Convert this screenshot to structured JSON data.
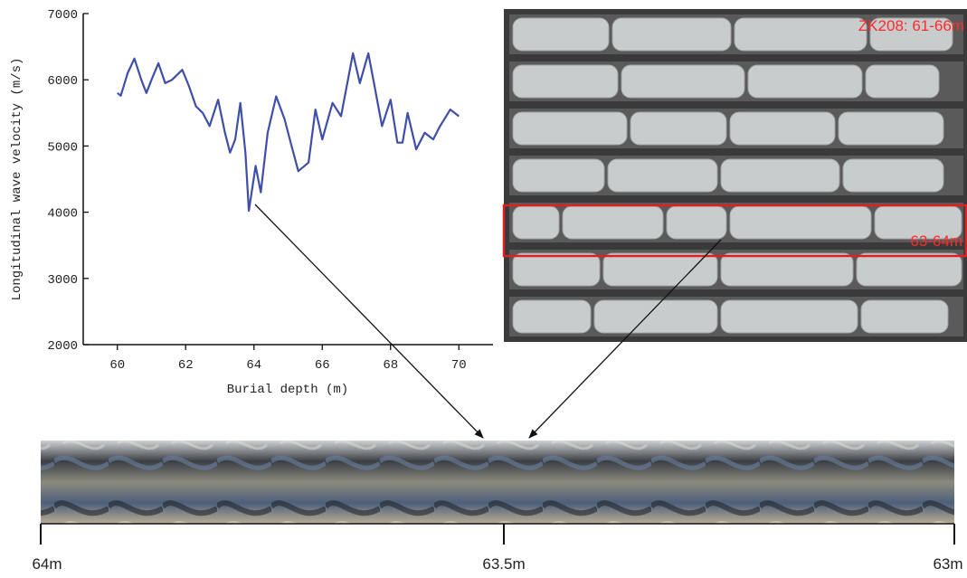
{
  "chart_data": {
    "type": "line",
    "xlabel": "Burial depth (m)",
    "ylabel": "Longitudinal wave velocity (m/s)",
    "xlim": [
      59,
      71
    ],
    "xticks": [
      60,
      62,
      64,
      66,
      68,
      70
    ],
    "ylim": [
      2000,
      7000
    ],
    "yticks": [
      2000,
      3000,
      4000,
      5000,
      6000,
      7000
    ],
    "color": "#3f4fa8",
    "x": [
      60.0,
      60.1,
      60.3,
      60.5,
      60.7,
      60.85,
      61.0,
      61.2,
      61.4,
      61.6,
      61.9,
      62.1,
      62.3,
      62.5,
      62.7,
      62.95,
      63.15,
      63.3,
      63.45,
      63.6,
      63.75,
      63.85,
      64.05,
      64.2,
      64.4,
      64.65,
      64.9,
      65.1,
      65.3,
      65.6,
      65.8,
      66.0,
      66.3,
      66.55,
      66.9,
      67.1,
      67.35,
      67.55,
      67.75,
      68.0,
      68.2,
      68.35,
      68.5,
      68.75,
      69.0,
      69.25,
      69.45,
      69.75,
      70.0
    ],
    "values": [
      5800,
      5760,
      6100,
      6320,
      6000,
      5800,
      6000,
      6250,
      5950,
      6000,
      6150,
      5900,
      5600,
      5500,
      5300,
      5700,
      5200,
      4900,
      5100,
      5650,
      4900,
      4020,
      4700,
      4300,
      5200,
      5750,
      5400,
      5000,
      4620,
      4750,
      5550,
      5100,
      5650,
      5450,
      6400,
      5950,
      6400,
      5850,
      5300,
      5700,
      5050,
      5050,
      5500,
      4950,
      5200,
      5100,
      5300,
      5550,
      5450
    ]
  },
  "core_photo": {
    "label": "ZK208: 61-66m",
    "highlight_label": "63-64m"
  },
  "scan": {
    "scale_labels": [
      "64m",
      "63.5m",
      "63m"
    ]
  }
}
